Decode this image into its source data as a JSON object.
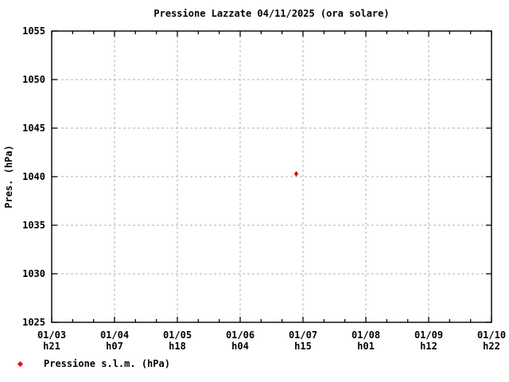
{
  "chart_data": {
    "type": "scatter",
    "title": "Pressione Lazzate 04/11/2025 (ora solare)",
    "ylabel": "Pres. (hPa)",
    "ylim": [
      1025,
      1055
    ],
    "yticks": [
      1025,
      1030,
      1035,
      1040,
      1045,
      1050,
      1055
    ],
    "xticks": [
      {
        "date": "01/03",
        "hour": "h21"
      },
      {
        "date": "01/04",
        "hour": "h07"
      },
      {
        "date": "01/05",
        "hour": "h18"
      },
      {
        "date": "01/06",
        "hour": "h04"
      },
      {
        "date": "01/07",
        "hour": "h15"
      },
      {
        "date": "01/08",
        "hour": "h01"
      },
      {
        "date": "01/09",
        "hour": "h12"
      },
      {
        "date": "01/10",
        "hour": "h22"
      }
    ],
    "x_minor_ticks_per_interval": 2,
    "grid": true,
    "legend_position": "bottom-left",
    "series": [
      {
        "name": "Pressione s.l.m. (hPa)",
        "marker": "diamond",
        "color": "#ee0000",
        "points": [
          {
            "x_fraction": 0.556,
            "x_approx": "01/07 ~h12",
            "value": 1040.3
          }
        ]
      }
    ],
    "colors": {
      "axis": "#000000",
      "grid": "#b0b0b0",
      "background": "#ffffff"
    }
  }
}
